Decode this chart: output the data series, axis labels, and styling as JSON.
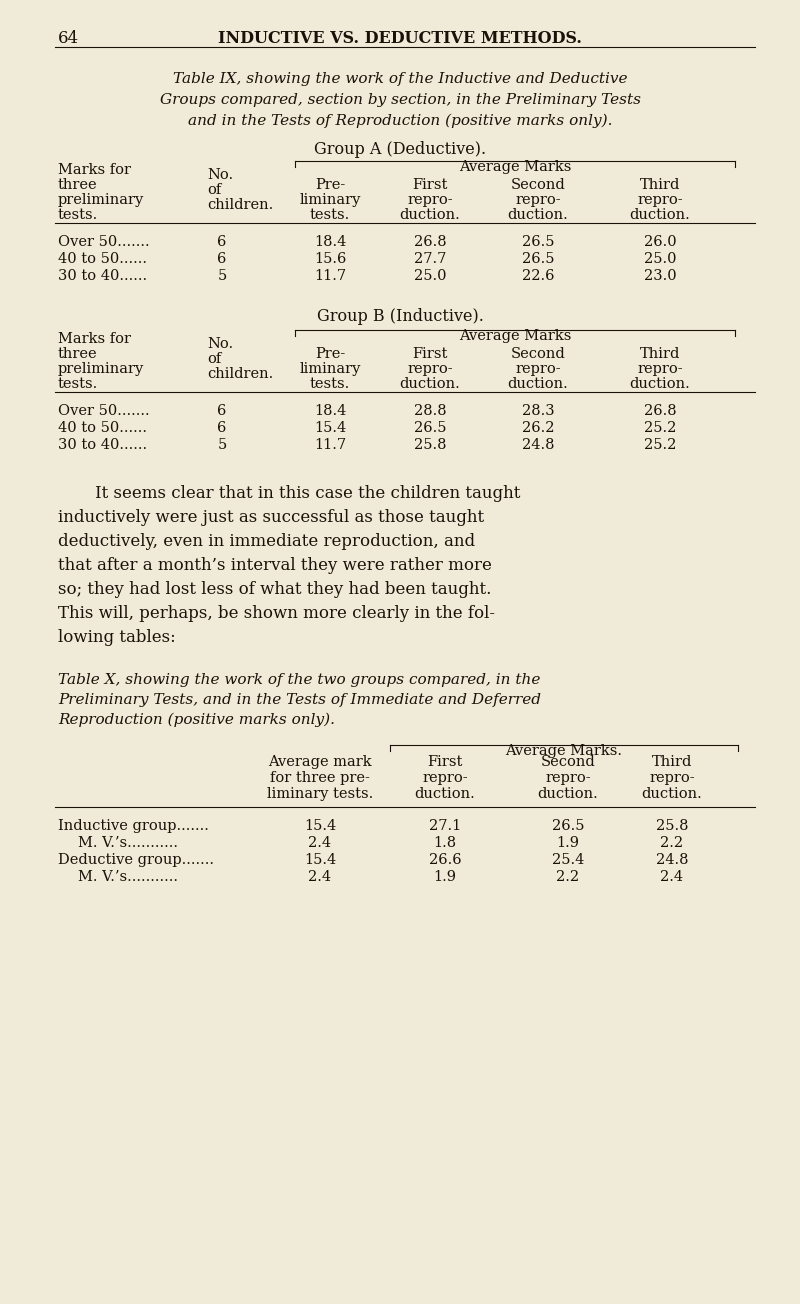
{
  "bg_color": "#f0ead8",
  "page_number": "64",
  "header": "INDUCTIVE VS. DEDUCTIVE METHODS.",
  "table_ix_caption_lines": [
    "Table IX, showing the work of the Inductive and Deductive",
    "Groups compared, section by section, in the Preliminary Tests",
    "and in the Tests of Reproduction (positive marks only)."
  ],
  "group_a_title": "Group A (Deductive).",
  "group_b_title": "Group B (Inductive).",
  "group_a_rows": [
    [
      "Over 50",
      "6",
      "18.4",
      "26.8",
      "26.5",
      "26.0"
    ],
    [
      "40 to 50",
      "6",
      "15.6",
      "27.7",
      "26.5",
      "25.0"
    ],
    [
      "30 to 40",
      "5",
      "11.7",
      "25.0",
      "22.6",
      "23.0"
    ]
  ],
  "group_b_rows": [
    [
      "Over 50",
      "6",
      "18.4",
      "28.8",
      "28.3",
      "26.8"
    ],
    [
      "40 to 50",
      "6",
      "15.4",
      "26.5",
      "26.2",
      "25.2"
    ],
    [
      "30 to 40",
      "5",
      "11.7",
      "25.8",
      "24.8",
      "25.2"
    ]
  ],
  "paragraph_lines": [
    "It seems clear that in this case the children taught",
    "inductively were just as successful as those taught",
    "deductively, even in immediate reproduction, and",
    "that after a month’s interval they were rather more",
    "so; they had lost less of what they had been taught.",
    "This will, perhaps, be shown more clearly in the fol-",
    "lowing tables:"
  ],
  "table_x_caption_lines": [
    "Table X, showing the work of the two groups compared, in the",
    "Preliminary Tests, and in the Tests of Immediate and Deferred",
    "Reproduction (positive marks only)."
  ],
  "table_x_avg_marks_label": "Average Marks.",
  "table_x_rows": [
    [
      "Inductive group",
      "15.4",
      "27.1",
      "26.5",
      "25.8"
    ],
    [
      "M. V.’s",
      "2.4",
      "1.8",
      "1.9",
      "2.2"
    ],
    [
      "Deductive group",
      "15.4",
      "26.6",
      "25.4",
      "24.8"
    ],
    [
      "M. V.’s",
      "2.4",
      "1.9",
      "2.2",
      "2.4"
    ]
  ],
  "text_color": "#1a1208",
  "line_color": "#1a1208"
}
